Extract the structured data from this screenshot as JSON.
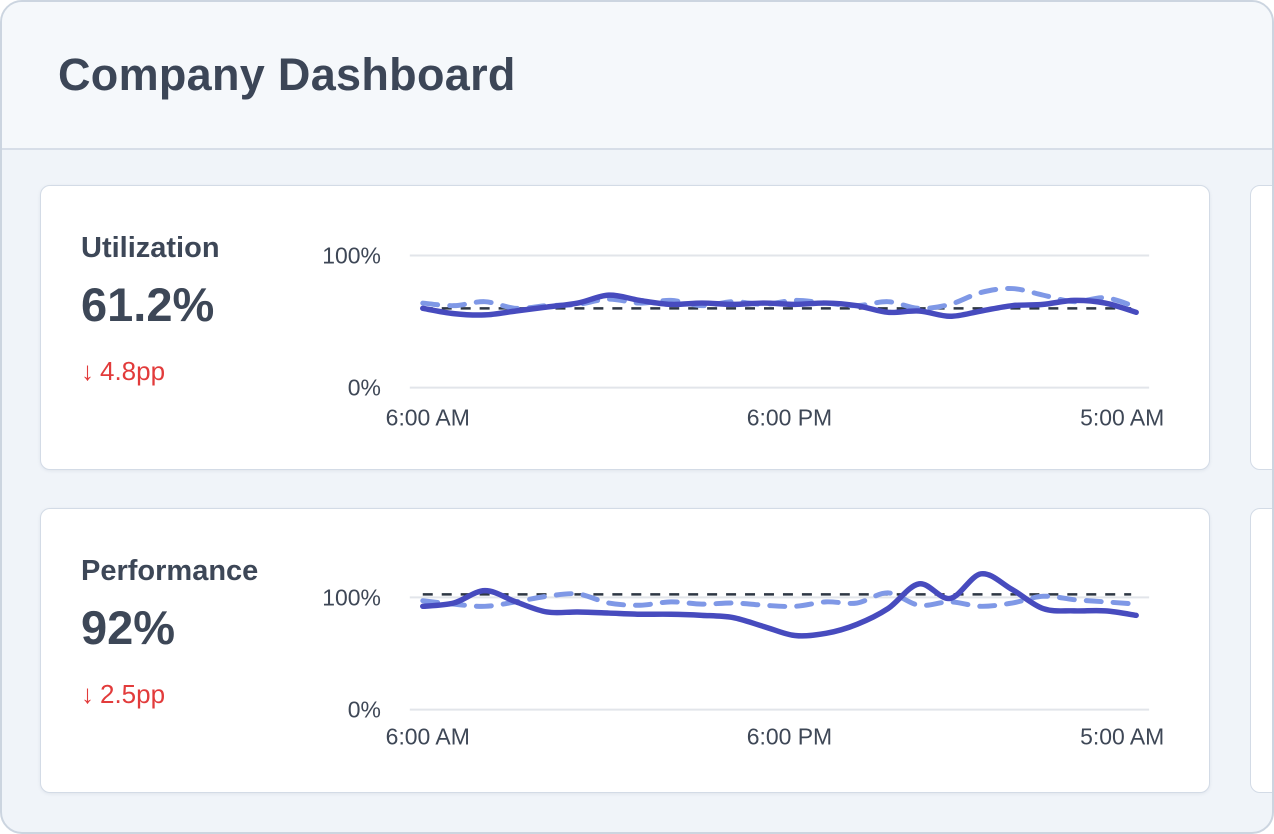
{
  "header": {
    "title": "Company Dashboard"
  },
  "colors": {
    "solid_line": "#474bbe",
    "dashed_line": "#7f98e6",
    "reference_line": "#2e3744",
    "gridline": "#e2e5ea",
    "axis_text": "#3e4756",
    "delta_negative": "#e23b3b",
    "heading_text": "#3c4657",
    "card_border": "#d3dbe6",
    "page_background": "#f0f4f9",
    "header_background": "#f5f8fb"
  },
  "cards": [
    {
      "metric": "Utilization",
      "value": "61.2%",
      "delta_arrow": "↓",
      "delta_value": "4.8pp",
      "delta_direction": "down"
    },
    {
      "metric": "Performance",
      "value": "92%",
      "delta_arrow": "↓",
      "delta_value": "2.5pp",
      "delta_direction": "down"
    }
  ],
  "chart_data": [
    {
      "type": "line",
      "title": "Utilization",
      "x_tick_labels": [
        "6:00 AM",
        "6:00 PM",
        "5:00 AM"
      ],
      "x_span_hours": 23,
      "y_ticks": [
        {
          "label": "100%",
          "value": 100
        },
        {
          "label": "0%",
          "value": 0
        }
      ],
      "ylim": [
        0,
        100
      ],
      "grid": true,
      "legend": false,
      "reference_line": {
        "value": 60,
        "style": "dashed",
        "color": "#2e3744"
      },
      "series": [
        {
          "name": "solid",
          "style": "solid",
          "color": "#474bbe",
          "values": [
            60,
            56,
            55,
            58,
            61,
            64,
            70,
            66,
            63,
            64,
            63,
            64,
            63,
            64,
            62,
            57,
            58,
            54,
            58,
            62,
            63,
            66,
            64,
            57
          ]
        },
        {
          "name": "dashed",
          "style": "dashed",
          "color": "#7f98e6",
          "values": [
            64,
            62,
            65,
            60,
            62,
            63,
            67,
            64,
            66,
            62,
            65,
            63,
            66,
            64,
            62,
            65,
            60,
            63,
            72,
            75,
            70,
            65,
            68,
            61
          ]
        }
      ]
    },
    {
      "type": "line",
      "title": "Performance",
      "x_tick_labels": [
        "6:00 AM",
        "6:00 PM",
        "5:00 AM"
      ],
      "x_span_hours": 23,
      "y_ticks": [
        {
          "label": "100%",
          "value": 100
        },
        {
          "label": "0%",
          "value": 0
        }
      ],
      "ylim": [
        0,
        130
      ],
      "grid": true,
      "legend": false,
      "reference_line": {
        "value": 100,
        "style": "dashed",
        "color": "#2e3744"
      },
      "series": [
        {
          "name": "solid",
          "style": "solid",
          "color": "#474bbe",
          "values": [
            92,
            95,
            106,
            96,
            87,
            87,
            86,
            85,
            85,
            84,
            82,
            74,
            66,
            68,
            76,
            90,
            112,
            99,
            121,
            107,
            90,
            88,
            88,
            84
          ]
        },
        {
          "name": "dashed",
          "style": "dashed",
          "color": "#7f98e6",
          "values": [
            97,
            94,
            92,
            96,
            101,
            103,
            95,
            93,
            96,
            94,
            95,
            93,
            92,
            96,
            95,
            104,
            93,
            96,
            92,
            95,
            101,
            98,
            96,
            94
          ]
        }
      ]
    }
  ]
}
